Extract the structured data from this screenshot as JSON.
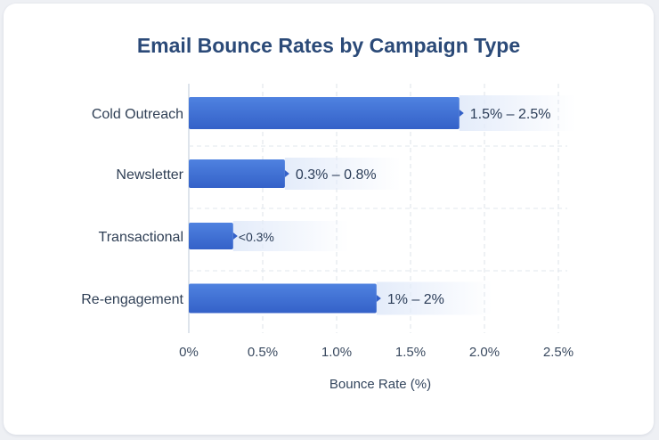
{
  "chart_data": {
    "type": "bar",
    "orientation": "horizontal",
    "title": "Email Bounce Rates by Campaign Type",
    "xlabel": "Bounce Rate (%)",
    "ylabel": "",
    "xlim": [
      0,
      2.5
    ],
    "x_ticks": [
      "0%",
      "0.5%",
      "1.0%",
      "1.5%",
      "2.0%",
      "2.5%"
    ],
    "categories": [
      "Cold Outreach",
      "Newsletter",
      "Transactional",
      "Re-engagement"
    ],
    "values": [
      1.83,
      0.65,
      0.3,
      1.27
    ],
    "value_labels": [
      "1.5% – 2.5%",
      "0.3% – 0.8%",
      "<0.3%",
      "1% – 2%"
    ],
    "grid": true,
    "bar_color": "#3b6fd4"
  }
}
